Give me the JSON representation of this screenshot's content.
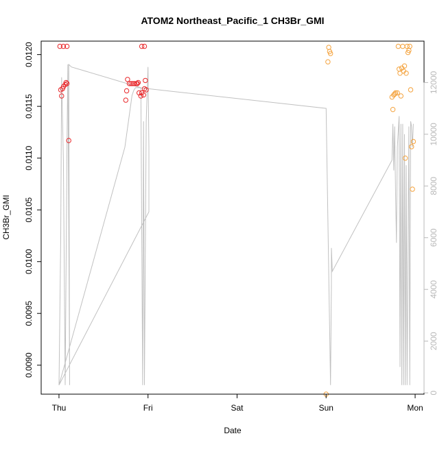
{
  "chart_data": {
    "type": "scatter",
    "title": "ATOM2 Northeast_Pacific_1 CH3Br_GMI",
    "xlabel": "Date",
    "ylabel": "CH3Br_GMI",
    "x_ticks": [
      "Thu",
      "Fri",
      "Sat",
      "Sun",
      "Mon"
    ],
    "xlim_days": [
      -0.2,
      4.1
    ],
    "ylim_left": [
      0.00872,
      0.01213
    ],
    "y_ticks_left": [
      0.009,
      0.0095,
      0.01,
      0.0105,
      0.011,
      0.0115,
      0.012
    ],
    "y_tick_labels_left": [
      "0.0090",
      "0.0095",
      "0.0100",
      "0.0105",
      "0.0110",
      "0.0115",
      "0.0120"
    ],
    "ylim_right": [
      -50,
      13600
    ],
    "y_ticks_right": [
      0,
      2000,
      4000,
      6000,
      8000,
      10000,
      12000
    ],
    "grid": false,
    "colors": {
      "series_red": "#e8272a",
      "series_orange": "#f4a23c",
      "altitude_line": "#c0c0c0",
      "axes": "#000000",
      "right_axis": "#b8b8b8"
    },
    "series": [
      {
        "color": "red",
        "points": [
          [
            0.01,
            0.01208
          ],
          [
            0.05,
            0.01208
          ],
          [
            0.09,
            0.01208
          ],
          [
            0.02,
            0.01166
          ],
          [
            0.03,
            0.0116
          ],
          [
            0.04,
            0.01167
          ],
          [
            0.05,
            0.01169
          ],
          [
            0.07,
            0.01171
          ],
          [
            0.08,
            0.01173
          ],
          [
            0.09,
            0.01172
          ],
          [
            0.11,
            0.01117
          ],
          [
            0.75,
            0.01156
          ],
          [
            0.76,
            0.01165
          ],
          [
            0.77,
            0.01176
          ],
          [
            0.79,
            0.01172
          ],
          [
            0.81,
            0.01172
          ],
          [
            0.83,
            0.01172
          ],
          [
            0.85,
            0.01172
          ],
          [
            0.87,
            0.01172
          ],
          [
            0.88,
            0.01172
          ],
          [
            0.89,
            0.01173
          ],
          [
            0.9,
            0.01163
          ],
          [
            0.92,
            0.0116
          ],
          [
            0.93,
            0.01163
          ],
          [
            0.95,
            0.01161
          ],
          [
            0.96,
            0.01167
          ],
          [
            0.97,
            0.01175
          ],
          [
            0.98,
            0.01166
          ],
          [
            0.93,
            0.01208
          ],
          [
            0.96,
            0.01208
          ]
        ]
      },
      {
        "color": "orange",
        "points": [
          [
            3.0,
            0.00872
          ],
          [
            3.02,
            0.01193
          ],
          [
            3.03,
            0.01207
          ],
          [
            3.04,
            0.01203
          ],
          [
            3.05,
            0.01201
          ],
          [
            3.74,
            0.01159
          ],
          [
            3.75,
            0.01147
          ],
          [
            3.76,
            0.01161
          ],
          [
            3.77,
            0.01162
          ],
          [
            3.78,
            0.01163
          ],
          [
            3.8,
            0.01163
          ],
          [
            3.81,
            0.01208
          ],
          [
            3.82,
            0.01186
          ],
          [
            3.83,
            0.01182
          ],
          [
            3.84,
            0.0116
          ],
          [
            3.85,
            0.01187
          ],
          [
            3.86,
            0.01208
          ],
          [
            3.87,
            0.01184
          ],
          [
            3.88,
            0.01189
          ],
          [
            3.89,
            0.011
          ],
          [
            3.9,
            0.01182
          ],
          [
            3.91,
            0.01208
          ],
          [
            3.92,
            0.01202
          ],
          [
            3.93,
            0.01204
          ],
          [
            3.94,
            0.01208
          ],
          [
            3.95,
            0.01166
          ],
          [
            3.96,
            0.01111
          ],
          [
            3.97,
            0.0107
          ],
          [
            3.98,
            0.01116
          ]
        ]
      }
    ],
    "altitude_line": [
      [
        0.0,
        300
      ],
      [
        0.02,
        6000
      ],
      [
        0.03,
        12200
      ],
      [
        0.05,
        9000
      ],
      [
        0.07,
        300
      ],
      [
        0.09,
        9500
      ],
      [
        0.1,
        12700
      ],
      [
        0.12,
        300
      ],
      [
        0.11,
        12700
      ],
      [
        0.14,
        12600
      ],
      [
        0.92,
        11800
      ],
      [
        0.94,
        300
      ],
      [
        0.95,
        10500
      ],
      [
        0.96,
        300
      ],
      [
        0.98,
        10500
      ],
      [
        1.0,
        12600
      ],
      [
        1.01,
        9500
      ],
      [
        1.01,
        7000
      ],
      [
        0.0,
        300
      ],
      [
        0.74,
        9500
      ],
      [
        0.76,
        10000
      ],
      [
        0.78,
        10500
      ],
      [
        0.8,
        11000
      ],
      [
        0.82,
        11500
      ],
      [
        0.84,
        11700
      ],
      [
        0.86,
        11800
      ],
      [
        0.88,
        11800
      ],
      [
        0.9,
        11800
      ],
      [
        3.0,
        11000
      ],
      [
        3.05,
        300
      ],
      [
        3.06,
        4200
      ],
      [
        3.06,
        5600
      ],
      [
        3.07,
        4700
      ],
      [
        3.74,
        9000
      ],
      [
        3.75,
        10400
      ],
      [
        3.76,
        8600
      ],
      [
        3.77,
        10300
      ],
      [
        3.78,
        7700
      ],
      [
        3.79,
        5800
      ],
      [
        3.8,
        9500
      ],
      [
        3.82,
        10700
      ],
      [
        3.83,
        1000
      ],
      [
        3.84,
        10400
      ],
      [
        3.85,
        300
      ],
      [
        3.86,
        10400
      ],
      [
        3.87,
        300
      ],
      [
        3.88,
        10000
      ],
      [
        3.89,
        300
      ],
      [
        3.9,
        8800
      ],
      [
        3.91,
        300
      ],
      [
        3.93,
        10300
      ],
      [
        3.94,
        300
      ],
      [
        3.95,
        10500
      ],
      [
        3.96,
        10300
      ],
      [
        3.97,
        9500
      ],
      [
        3.98,
        10400
      ]
    ]
  }
}
